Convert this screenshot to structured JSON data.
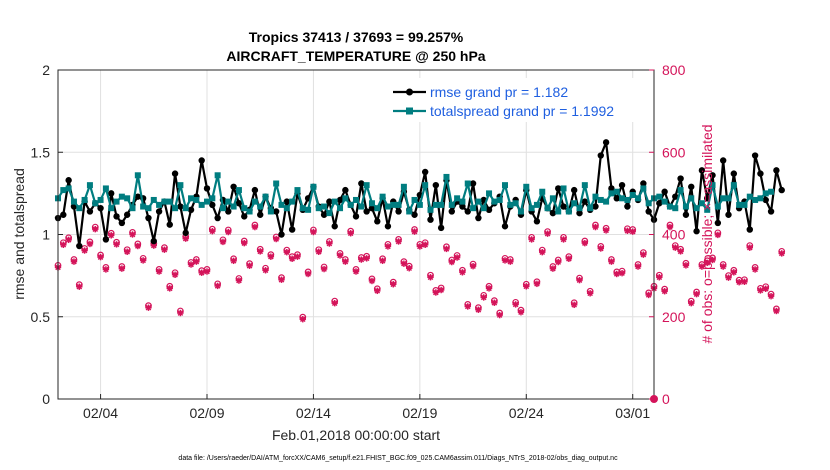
{
  "chart_data": {
    "type": "line",
    "title": [
      "Tropics 37413 / 37693 = 99.257%",
      "AIRCRAFT_TEMPERATURE @ 250 hPa"
    ],
    "xlabel": "Feb.01,2018 00:00:00 start",
    "ylabel_left": "rmse and totalspread",
    "ylabel_right": "# of obs: o=possible; ×=assimilated",
    "footer": "data file: /Users/raeder/DAI/ATM_forcXX/CAM6_setup/f.e21.FHIST_BGC.f09_025.CAM6assim.011/Diags_NTrS_2018-02/obs_diag_output.nc",
    "xlim": [
      1.0,
      29.0
    ],
    "x_ticks": [
      3,
      8,
      13,
      18,
      23,
      28
    ],
    "x_tick_labels": [
      "02/04",
      "02/09",
      "02/14",
      "02/19",
      "02/24",
      "03/01"
    ],
    "ylim_left": [
      0,
      2
    ],
    "y_ticks_left": [
      0,
      0.5,
      1,
      1.5,
      2
    ],
    "y_tick_labels_left": [
      "0",
      "0.5",
      "1",
      "1.5",
      "2"
    ],
    "ylim_right": [
      0,
      800
    ],
    "y_ticks_right": [
      0,
      200,
      400,
      600,
      800
    ],
    "y_tick_labels_right": [
      "0",
      "200",
      "400",
      "600",
      "800"
    ],
    "grid": true,
    "legend_position": "top-right",
    "time_step": 0.25,
    "series": [
      {
        "name": "rmse grand pr = 1.182",
        "axis": "left",
        "color": "#000000",
        "marker": "filled-circle",
        "start": 1.0,
        "values": [
          1.1,
          1.12,
          1.33,
          1.17,
          0.93,
          1.2,
          1.14,
          1.19,
          1.16,
          0.97,
          1.25,
          1.11,
          1.07,
          1.12,
          1.18,
          1.23,
          1.22,
          1.1,
          0.96,
          1.14,
          1.2,
          1.06,
          1.37,
          1.17,
          1.01,
          1.15,
          1.23,
          1.45,
          1.28,
          1.18,
          1.1,
          1.21,
          1.14,
          1.29,
          1.19,
          1.11,
          1.15,
          1.27,
          1.12,
          1.23,
          1.16,
          1.14,
          1.0,
          1.2,
          1.03,
          1.25,
          1.15,
          1.22,
          1.29,
          1.17,
          1.12,
          1.2,
          1.05,
          1.21,
          1.27,
          1.18,
          1.11,
          1.31,
          1.14,
          1.16,
          1.08,
          1.22,
          1.05,
          1.2,
          1.14,
          1.26,
          1.15,
          1.12,
          1.24,
          1.38,
          1.09,
          1.3,
          1.04,
          1.33,
          1.14,
          1.2,
          1.17,
          1.14,
          1.31,
          1.1,
          1.21,
          1.15,
          1.19,
          1.23,
          1.05,
          1.17,
          1.21,
          1.12,
          1.27,
          1.14,
          1.08,
          1.22,
          1.16,
          1.13,
          1.28,
          1.17,
          1.14,
          1.27,
          1.13,
          1.2,
          1.15,
          1.17,
          1.48,
          1.56,
          1.28,
          1.22,
          1.3,
          1.17,
          1.26,
          1.21,
          1.31,
          1.14,
          1.09,
          1.19,
          1.26,
          1.17,
          1.23,
          1.34,
          1.12,
          1.29,
          1.02,
          1.39,
          1.22,
          1.36,
          1.07,
          1.45,
          1.12,
          1.37,
          1.16,
          1.2,
          1.03,
          1.48,
          1.37,
          1.21,
          1.14,
          1.39,
          1.27
        ]
      },
      {
        "name": "totalspread grand pr = 1.1992",
        "axis": "left",
        "color": "#007d80",
        "marker": "filled-square",
        "start": 1.0,
        "values": [
          1.22,
          1.27,
          1.28,
          1.2,
          1.16,
          1.21,
          1.3,
          1.19,
          1.21,
          1.28,
          1.16,
          1.2,
          1.23,
          1.22,
          1.16,
          1.36,
          1.17,
          1.16,
          1.21,
          1.18,
          1.2,
          1.2,
          1.16,
          1.3,
          1.16,
          1.22,
          1.21,
          1.18,
          1.2,
          1.22,
          1.36,
          1.16,
          1.2,
          1.17,
          1.27,
          1.16,
          1.14,
          1.2,
          1.17,
          1.23,
          1.14,
          1.31,
          1.18,
          1.16,
          1.2,
          1.27,
          1.16,
          1.15,
          1.29,
          1.16,
          1.17,
          1.13,
          1.2,
          1.16,
          1.22,
          1.18,
          1.21,
          1.17,
          1.3,
          1.19,
          1.16,
          1.23,
          1.17,
          1.18,
          1.18,
          1.29,
          1.14,
          1.21,
          1.18,
          1.3,
          1.15,
          1.18,
          1.18,
          1.35,
          1.18,
          1.22,
          1.2,
          1.31,
          1.16,
          1.2,
          1.16,
          1.25,
          1.2,
          1.21,
          1.3,
          1.18,
          1.19,
          1.14,
          1.29,
          1.16,
          1.18,
          1.26,
          1.16,
          1.22,
          1.14,
          1.28,
          1.14,
          1.19,
          1.16,
          1.3,
          1.16,
          1.23,
          1.21,
          1.2,
          1.25,
          1.26,
          1.22,
          1.21,
          1.24,
          1.22,
          1.28,
          1.19,
          1.22,
          1.23,
          1.2,
          1.17,
          1.16,
          1.27,
          1.17,
          1.22,
          1.16,
          1.19,
          1.15,
          1.3,
          1.17,
          1.22,
          1.22,
          1.3,
          1.18,
          1.18,
          1.23,
          1.21,
          1.22,
          1.25,
          1.26
        ]
      },
      {
        "name": "# of obs possible",
        "axis": "right",
        "color": "#d4145a",
        "marker": "open-circle",
        "start": 1.0,
        "values": [
          325,
          380,
          392,
          339,
          278,
          366,
          382,
          418,
          350,
          320,
          403,
          381,
          322,
          363,
          405,
          377,
          342,
          227,
          378,
          315,
          368,
          274,
          307,
          214,
          395,
          332,
          339,
          312,
          315,
          413,
          280,
          387,
          411,
          341,
          293,
          384,
          329,
          423,
          364,
          318,
          351,
          394,
          295,
          362,
          346,
          351,
          199,
          309,
          411,
          363,
          321,
          383,
          238,
          354,
          339,
          408,
          315,
          344,
          347,
          292,
          268,
          341,
          376,
          284,
          388,
          334,
          323,
          412,
          376,
          380,
          301,
          264,
          270,
          370,
          338,
          349,
          313,
          230,
          328,
          222,
          252,
          274,
          239,
          209,
          342,
          339,
          235,
          216,
          279,
          393,
          285,
          362,
          407,
          322,
          338,
          393,
          346,
          234,
          294,
          384,
          262,
          423,
          371,
          415,
          339,
          309,
          311,
          414,
          412,
          327,
          356,
          258,
          274,
          301,
          267,
          423,
          373,
          364,
          330,
          238,
          260,
          327,
          336,
          343,
          404,
          327,
          300,
          313,
          289,
          290,
          373,
          320,
          269,
          273,
          255,
          219,
          359
        ]
      },
      {
        "name": "# of obs assimilated",
        "axis": "right",
        "color": "#d4145a",
        "marker": "asterisk",
        "start": 1.0,
        "values": [
          320,
          375,
          387,
          334,
          273,
          361,
          377,
          413,
          345,
          315,
          398,
          376,
          317,
          358,
          400,
          372,
          337,
          222,
          373,
          310,
          363,
          269,
          302,
          209,
          390,
          327,
          334,
          307,
          310,
          408,
          275,
          382,
          406,
          336,
          288,
          379,
          324,
          418,
          359,
          313,
          346,
          389,
          290,
          357,
          341,
          346,
          194,
          304,
          406,
          358,
          316,
          378,
          233,
          349,
          334,
          403,
          310,
          339,
          342,
          287,
          263,
          336,
          371,
          279,
          383,
          329,
          318,
          407,
          371,
          375,
          296,
          259,
          265,
          365,
          333,
          344,
          308,
          225,
          323,
          217,
          247,
          269,
          234,
          204,
          337,
          334,
          230,
          211,
          274,
          388,
          280,
          357,
          402,
          317,
          333,
          388,
          341,
          229,
          289,
          379,
          257,
          418,
          366,
          410,
          334,
          304,
          306,
          409,
          407,
          322,
          351,
          253,
          269,
          296,
          262,
          418,
          368,
          359,
          325,
          233,
          255,
          322,
          331,
          338,
          399,
          322,
          295,
          308,
          284,
          285,
          368,
          315,
          264,
          268,
          250,
          214,
          354
        ]
      }
    ]
  }
}
